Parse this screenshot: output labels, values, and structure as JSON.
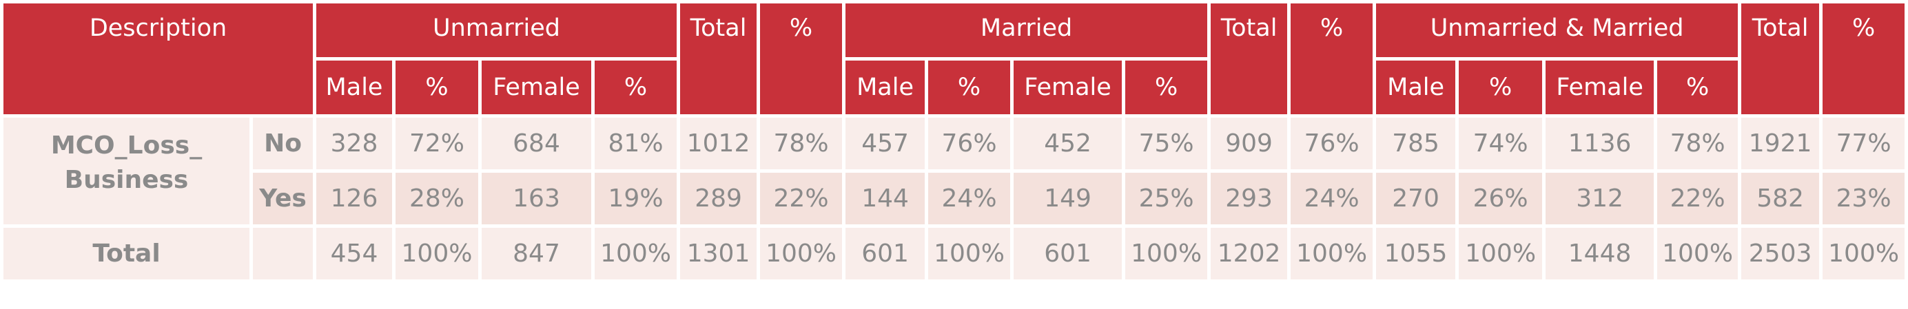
{
  "header": {
    "description": "Description",
    "groups": [
      {
        "label": "Unmarried",
        "columns": [
          "Male",
          "%",
          "Female",
          "%"
        ],
        "total": "Total",
        "percent": "%"
      },
      {
        "label": "Married",
        "columns": [
          "Male",
          "%",
          "Female",
          "%"
        ],
        "total": "Total",
        "percent": "%"
      },
      {
        "label": "Unmarried & Married",
        "columns": [
          "Male",
          "%",
          "Female",
          "%"
        ],
        "total": "Total",
        "percent": "%"
      }
    ]
  },
  "variable": "MCO_Loss_\nBusiness",
  "rows": [
    {
      "category": "No",
      "cells": [
        "328",
        "72%",
        "684",
        "81%",
        "1012",
        "78%",
        "457",
        "76%",
        "452",
        "75%",
        "909",
        "76%",
        "785",
        "74%",
        "1136",
        "78%",
        "1921",
        "77%"
      ]
    },
    {
      "category": "Yes",
      "cells": [
        "126",
        "28%",
        "163",
        "19%",
        "289",
        "22%",
        "144",
        "24%",
        "149",
        "25%",
        "293",
        "24%",
        "270",
        "26%",
        "312",
        "22%",
        "582",
        "23%"
      ]
    }
  ],
  "total_row": {
    "label": "Total",
    "cells": [
      "454",
      "100%",
      "847",
      "100%",
      "1301",
      "100%",
      "601",
      "100%",
      "601",
      "100%",
      "1202",
      "100%",
      "1055",
      "100%",
      "1448",
      "100%",
      "2503",
      "100%"
    ]
  }
}
